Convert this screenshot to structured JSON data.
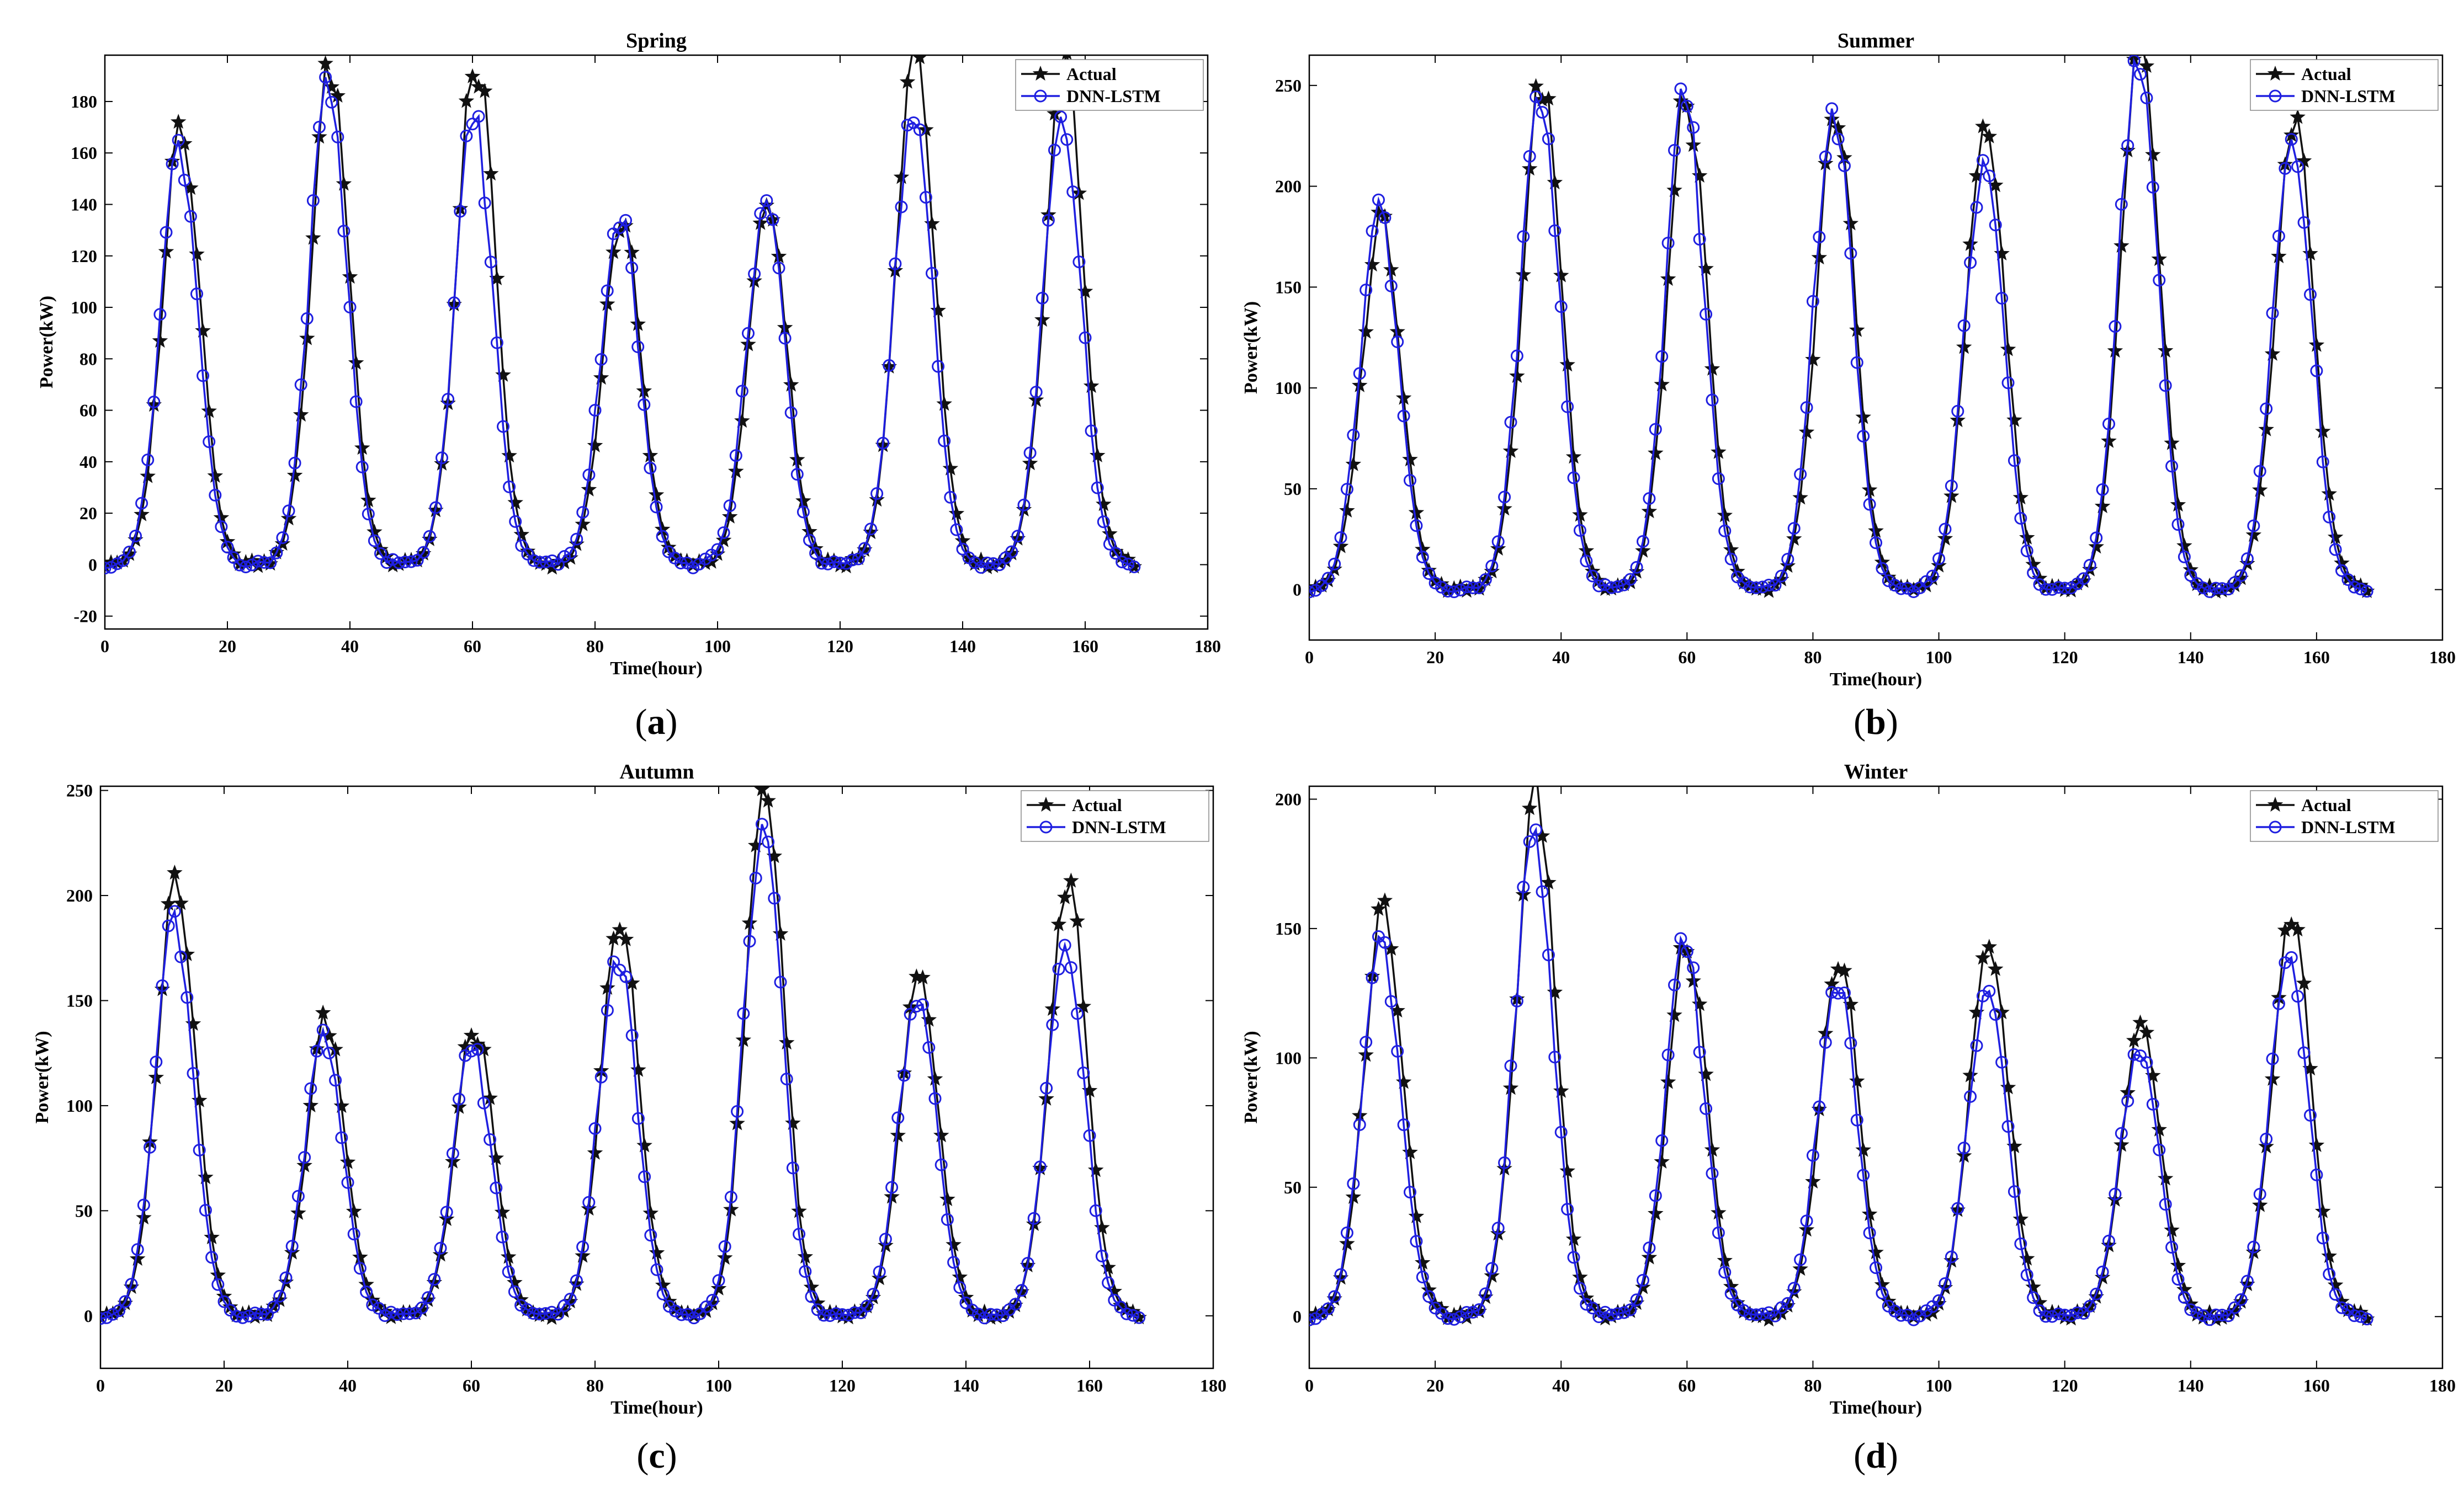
{
  "colors": {
    "actual": "#111111",
    "predicted": "#1f1fe0",
    "axis": "#000000"
  },
  "legend": {
    "actual": "Actual",
    "predicted": "DNN-LSTM",
    "placement": "top-right"
  },
  "chart_data": [
    {
      "type": "line",
      "caption_letter": "a",
      "title": "Spring",
      "xlabel": "Time(hour)",
      "ylabel": "Power(kW)",
      "xlim": [
        0,
        180
      ],
      "ylim": [
        -25,
        198
      ],
      "xticks": [
        0,
        20,
        40,
        60,
        80,
        100,
        120,
        140,
        160,
        180
      ],
      "yticks": [
        -20,
        0,
        20,
        40,
        60,
        80,
        100,
        120,
        140,
        160,
        180
      ],
      "peaks": [
        {
          "center": 12.5,
          "actual": 172,
          "predicted": 163
        },
        {
          "center": 36.8,
          "actual": 193,
          "predicted": 187
        },
        {
          "center": 60.6,
          "actual": 196,
          "predicted": 173
        },
        {
          "center": 84.4,
          "actual": 133,
          "predicted": 136
        },
        {
          "center": 108.2,
          "actual": 142,
          "predicted": 141
        },
        {
          "center": 132.3,
          "actual": 196,
          "predicted": 177
        },
        {
          "center": 156.6,
          "actual": 196,
          "predicted": 175
        }
      ],
      "x_end": 168,
      "series": [
        {
          "name": "Actual",
          "marker": "star"
        },
        {
          "name": "DNN-LSTM",
          "marker": "circle"
        }
      ]
    },
    {
      "type": "line",
      "caption_letter": "b",
      "title": "Summer",
      "xlabel": "Time(hour)",
      "ylabel": "Power(kW)",
      "xlim": [
        0,
        180
      ],
      "ylim": [
        -25,
        265
      ],
      "xticks": [
        0,
        20,
        40,
        60,
        80,
        100,
        120,
        140,
        160,
        180
      ],
      "yticks": [
        0,
        50,
        100,
        150,
        200,
        250
      ],
      "peaks": [
        {
          "center": 11.5,
          "actual": 185,
          "predicted": 189
        },
        {
          "center": 37.0,
          "actual": 252,
          "predicted": 244
        },
        {
          "center": 60.0,
          "actual": 243,
          "predicted": 243
        },
        {
          "center": 83.6,
          "actual": 235,
          "predicted": 239
        },
        {
          "center": 107.5,
          "actual": 231,
          "predicted": 212
        },
        {
          "center": 132.0,
          "actual": 265,
          "predicted": 265
        },
        {
          "center": 156.5,
          "actual": 232,
          "predicted": 224
        }
      ],
      "x_end": 168,
      "series": [
        {
          "name": "Actual",
          "marker": "star"
        },
        {
          "name": "DNN-LSTM",
          "marker": "circle"
        }
      ]
    },
    {
      "type": "line",
      "caption_letter": "c",
      "title": "Autumn",
      "xlabel": "Time(hour)",
      "ylabel": "Power(kW)",
      "xlim": [
        0,
        180
      ],
      "ylim": [
        -25,
        252
      ],
      "xticks": [
        0,
        20,
        40,
        60,
        80,
        100,
        120,
        140,
        160,
        180
      ],
      "yticks": [
        0,
        50,
        100,
        150,
        200,
        250
      ],
      "peaks": [
        {
          "center": 12.3,
          "actual": 209,
          "predicted": 190
        },
        {
          "center": 36.5,
          "actual": 140,
          "predicted": 133
        },
        {
          "center": 60.5,
          "actual": 137,
          "predicted": 127
        },
        {
          "center": 84.0,
          "actual": 187,
          "predicted": 172
        },
        {
          "center": 107.5,
          "actual": 252,
          "predicted": 233
        },
        {
          "center": 132.5,
          "actual": 158,
          "predicted": 152
        },
        {
          "center": 156.5,
          "actual": 205,
          "predicted": 177
        }
      ],
      "x_end": 168,
      "series": [
        {
          "name": "Actual",
          "marker": "star"
        },
        {
          "name": "DNN-LSTM",
          "marker": "circle"
        }
      ]
    },
    {
      "type": "line",
      "caption_letter": "d",
      "title": "Winter",
      "xlabel": "Time(hour)",
      "ylabel": "Power(kW)",
      "xlim": [
        0,
        180
      ],
      "ylim": [
        -20,
        205
      ],
      "xticks": [
        0,
        20,
        40,
        60,
        80,
        100,
        120,
        140,
        160,
        180
      ],
      "yticks": [
        0,
        50,
        100,
        150,
        200
      ],
      "peaks": [
        {
          "center": 11.8,
          "actual": 159,
          "predicted": 145
        },
        {
          "center": 36.0,
          "actual": 203,
          "predicted": 185
        },
        {
          "center": 60.0,
          "actual": 143,
          "predicted": 143
        },
        {
          "center": 84.2,
          "actual": 137,
          "predicted": 130
        },
        {
          "center": 108.0,
          "actual": 145,
          "predicted": 126
        },
        {
          "center": 132.2,
          "actual": 110,
          "predicted": 104
        },
        {
          "center": 156.0,
          "actual": 154,
          "predicted": 140
        }
      ],
      "x_end": 168,
      "series": [
        {
          "name": "Actual",
          "marker": "star"
        },
        {
          "name": "DNN-LSTM",
          "marker": "circle"
        }
      ]
    }
  ]
}
